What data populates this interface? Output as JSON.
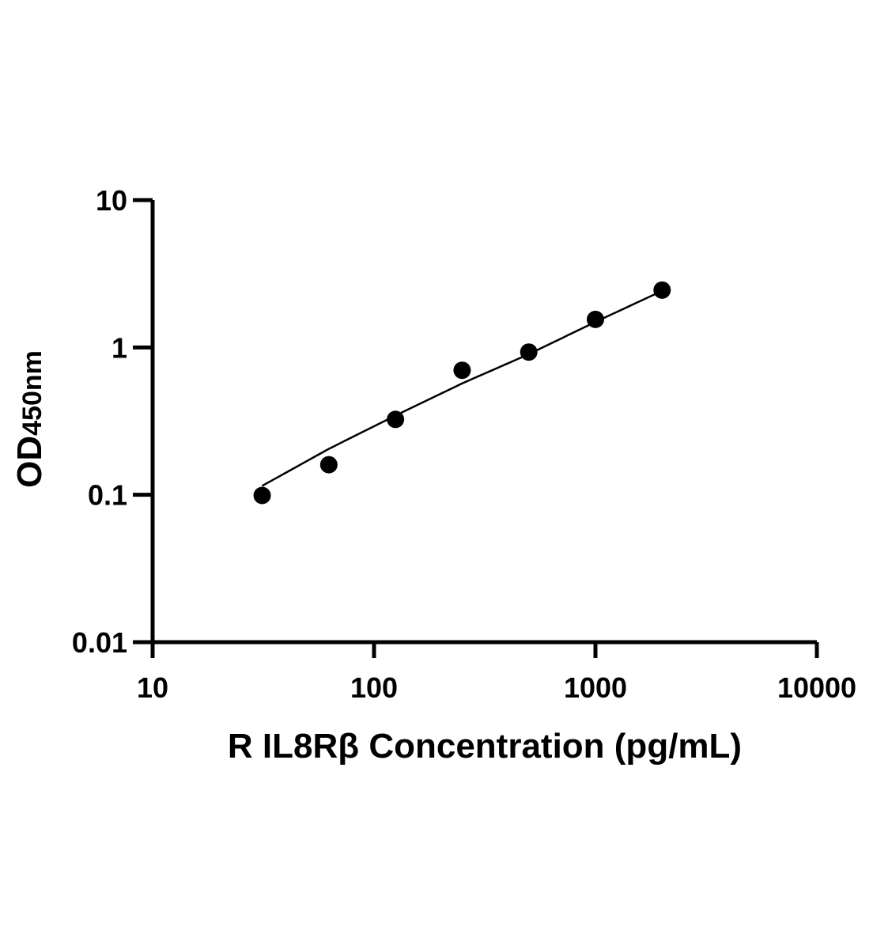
{
  "chart_data": {
    "type": "scatter",
    "xlabel": "R IL8Rβ Concentration (pg/mL)",
    "ylabel_main": "OD",
    "ylabel_sub": "450nm",
    "xscale": "log",
    "yscale": "log",
    "xlim": [
      10,
      10000
    ],
    "ylim": [
      0.01,
      10
    ],
    "x_ticks": [
      {
        "value": 10,
        "label": "10"
      },
      {
        "value": 100,
        "label": "100"
      },
      {
        "value": 1000,
        "label": "1000"
      },
      {
        "value": 10000,
        "label": "10000"
      }
    ],
    "y_ticks": [
      {
        "value": 0.01,
        "label": "0.01"
      },
      {
        "value": 0.1,
        "label": "0.1"
      },
      {
        "value": 1,
        "label": "1"
      },
      {
        "value": 10,
        "label": "10"
      }
    ],
    "grid": false,
    "legend": "none",
    "series": [
      {
        "points": [
          {
            "x": 31.25,
            "y": 0.099
          },
          {
            "x": 62.5,
            "y": 0.16
          },
          {
            "x": 125,
            "y": 0.325
          },
          {
            "x": 250,
            "y": 0.7
          },
          {
            "x": 500,
            "y": 0.93
          },
          {
            "x": 1000,
            "y": 1.55
          },
          {
            "x": 2000,
            "y": 2.45
          }
        ],
        "fit": {
          "x": [
            31.25,
            62.5,
            125,
            250,
            500,
            1000,
            2000
          ],
          "y": [
            0.115,
            0.205,
            0.345,
            0.57,
            0.9,
            1.49,
            2.42
          ]
        },
        "color": "#000000"
      }
    ]
  }
}
